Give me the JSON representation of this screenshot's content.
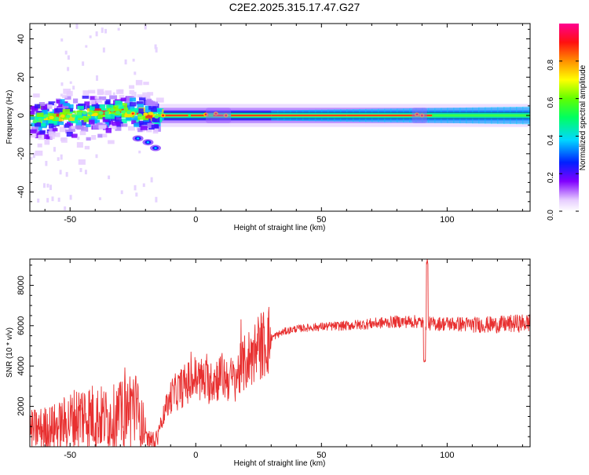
{
  "title": "C2E2.2025.315.17.47.G27",
  "colors": {
    "snr_line": "#e83030",
    "axis": "#000000",
    "background": "#ffffff"
  },
  "chart_data": [
    {
      "type": "heatmap",
      "name": "spectrogram",
      "xlabel": "Height of straight line (km)",
      "ylabel": "Frequency (Hz)",
      "xlim": [
        -66,
        133
      ],
      "ylim": [
        -50,
        48
      ],
      "xticks": [
        -50,
        0,
        50,
        100
      ],
      "yticks": [
        -40,
        -20,
        0,
        20,
        40
      ],
      "xtick_labels": [
        "-50",
        "0",
        "50",
        "100"
      ],
      "ytick_labels": [
        "-40",
        "-20",
        "0",
        "20",
        "40"
      ],
      "colorbar": {
        "label": "Normalized spectral amplitude",
        "range": [
          0.0,
          1.0
        ],
        "ticks": [
          0.0,
          0.2,
          0.4,
          0.6,
          0.8
        ],
        "tick_labels": [
          "0.0",
          "0.2",
          "0.4",
          "0.6",
          "0.8"
        ]
      },
      "ridge": [
        {
          "x": -64,
          "y": -2
        },
        {
          "x": -60,
          "y": -1.5
        },
        {
          "x": -55,
          "y": -1
        },
        {
          "x": -50,
          "y": -0.5
        },
        {
          "x": -45,
          "y": 0.5
        },
        {
          "x": -40,
          "y": 1
        },
        {
          "x": -35,
          "y": 2
        },
        {
          "x": -30,
          "y": 2.5
        },
        {
          "x": -25,
          "y": 1.5
        },
        {
          "x": -20,
          "y": 0.5
        },
        {
          "x": -15,
          "y": 0
        },
        {
          "x": 0,
          "y": 0
        },
        {
          "x": 50,
          "y": 0
        },
        {
          "x": 100,
          "y": 0
        },
        {
          "x": 133,
          "y": 0
        }
      ],
      "side_feature": [
        {
          "x": -23,
          "y": -12
        },
        {
          "x": -19,
          "y": -14
        },
        {
          "x": -16,
          "y": -17
        }
      ]
    },
    {
      "type": "line",
      "name": "snr",
      "xlabel": "Height of straight line (km)",
      "ylabel": "SNR (10 * v/v)",
      "xlim": [
        -66,
        133
      ],
      "ylim": [
        0,
        9300
      ],
      "xticks": [
        -50,
        0,
        50,
        100
      ],
      "yticks": [
        2000,
        4000,
        6000,
        8000
      ],
      "xtick_labels": [
        "-50",
        "0",
        "50",
        "100"
      ],
      "ytick_labels": [
        "2000",
        "4000",
        "6000",
        "8000"
      ],
      "trend": [
        {
          "x": -66,
          "y": 800
        },
        {
          "x": -55,
          "y": 1000
        },
        {
          "x": -45,
          "y": 1600
        },
        {
          "x": -35,
          "y": 1400
        },
        {
          "x": -28,
          "y": 1600
        },
        {
          "x": -25,
          "y": 2200
        },
        {
          "x": -20,
          "y": 600
        },
        {
          "x": -15,
          "y": 800
        },
        {
          "x": -10,
          "y": 2500
        },
        {
          "x": -5,
          "y": 3000
        },
        {
          "x": 0,
          "y": 3400
        },
        {
          "x": 5,
          "y": 3200
        },
        {
          "x": 10,
          "y": 3500
        },
        {
          "x": 15,
          "y": 3300
        },
        {
          "x": 20,
          "y": 4200
        },
        {
          "x": 25,
          "y": 4900
        },
        {
          "x": 30,
          "y": 5400
        },
        {
          "x": 35,
          "y": 5700
        },
        {
          "x": 40,
          "y": 5850
        },
        {
          "x": 50,
          "y": 5950
        },
        {
          "x": 60,
          "y": 6000
        },
        {
          "x": 70,
          "y": 6100
        },
        {
          "x": 80,
          "y": 6200
        },
        {
          "x": 88,
          "y": 6200
        },
        {
          "x": 92,
          "y": 6100
        },
        {
          "x": 100,
          "y": 6100
        },
        {
          "x": 110,
          "y": 6050
        },
        {
          "x": 120,
          "y": 6050
        },
        {
          "x": 133,
          "y": 6150
        }
      ],
      "spike": {
        "x": 92,
        "y": 9300
      },
      "dip": {
        "x": 91,
        "y": 4200
      }
    }
  ]
}
